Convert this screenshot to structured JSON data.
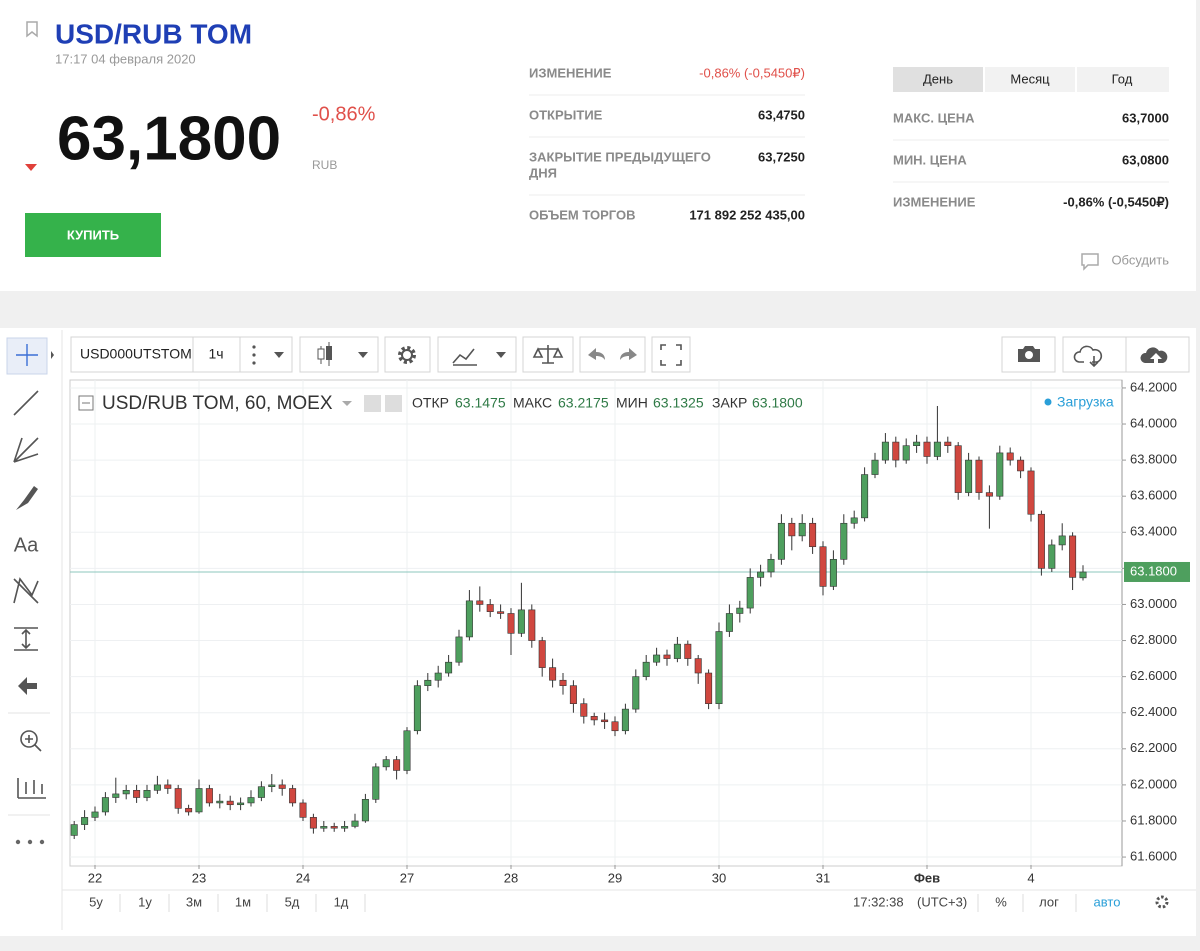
{
  "header": {
    "title": "USD/RUB TOM",
    "datetime": "17:17 04 февраля 2020",
    "price": "63,1800",
    "change": "-0,86%",
    "currency": "RUB",
    "buy_button": "КУПИТЬ"
  },
  "stats": [
    {
      "label": [
        "ИЗМЕНЕНИЕ"
      ],
      "value": "-0,86% (-0,5450₽)"
    },
    {
      "label": [
        "ОТКРЫТИЕ"
      ],
      "value": "63,4750"
    },
    {
      "label": [
        "ЗАКРЫТИЕ ПРЕДЫДУЩЕГО",
        "ДНЯ"
      ],
      "value": "63,7250"
    },
    {
      "label": [
        "ОБЪЕМ ТОРГОВ"
      ],
      "value": "171 892 252 435,00"
    }
  ],
  "period_tabs": [
    "День",
    "Месяц",
    "Год"
  ],
  "range_stats": [
    {
      "label": "МАКС. ЦЕНА",
      "value": "63,7000"
    },
    {
      "label": "МИН. ЦЕНА",
      "value": "63,0800"
    },
    {
      "label": "ИЗМЕНЕНИЕ",
      "value": "-0,86% (-0,5450₽)"
    }
  ],
  "discuss": "Обсудить",
  "toolbar": {
    "symbol": "USD000UTSTOM",
    "interval": "1ч"
  },
  "tools": {
    "text_tool": "Aa"
  },
  "chart_data": {
    "type": "candlestick",
    "title": "USD/RUB TOM, 60, MOEX",
    "legend": [
      {
        "name": "ОТКР",
        "value": "63.1475"
      },
      {
        "name": "МАКС",
        "value": "63.2175"
      },
      {
        "name": "МИН",
        "value": "63.1325"
      },
      {
        "name": "ЗАКР",
        "value": "63.1800"
      }
    ],
    "status": "Загрузка",
    "up_color": "#4e9f5e",
    "down_color": "#d0473f",
    "grid": true,
    "ylim": [
      61.556,
      64.244
    ],
    "yticks": [
      {
        "value": 61.6,
        "label": "61.6000"
      },
      {
        "value": 61.8,
        "label": "61.8000"
      },
      {
        "value": 62.0,
        "label": "62.0000"
      },
      {
        "value": 62.2,
        "label": "62.2000"
      },
      {
        "value": 62.4,
        "label": "62.4000"
      },
      {
        "value": 62.6,
        "label": "62.6000"
      },
      {
        "value": 62.8,
        "label": "62.8000"
      },
      {
        "value": 63.0,
        "label": "63.0000"
      },
      {
        "value": 63.2,
        "label": "63.2000"
      },
      {
        "value": 63.4,
        "label": "63.4000"
      },
      {
        "value": 63.6,
        "label": "63.6000"
      },
      {
        "value": 63.8,
        "label": "63.8000"
      },
      {
        "value": 64.0,
        "label": "64.0000"
      },
      {
        "value": 64.2,
        "label": "64.2000"
      }
    ],
    "price_line": {
      "value": 63.18,
      "label": "63.1800"
    },
    "categories": [
      null,
      null,
      "22",
      null,
      null,
      null,
      null,
      null,
      null,
      null,
      null,
      null,
      "23",
      null,
      null,
      null,
      null,
      null,
      null,
      null,
      null,
      null,
      "24",
      null,
      null,
      null,
      null,
      null,
      null,
      null,
      null,
      null,
      "27",
      null,
      null,
      null,
      null,
      null,
      null,
      null,
      null,
      null,
      "28",
      null,
      null,
      null,
      null,
      null,
      null,
      null,
      null,
      null,
      "29",
      null,
      null,
      null,
      null,
      null,
      null,
      null,
      null,
      null,
      "30",
      null,
      null,
      null,
      null,
      null,
      null,
      null,
      null,
      null,
      "31",
      null,
      null,
      null,
      null,
      null,
      null,
      null,
      null,
      null,
      "Фев",
      null,
      null,
      null,
      null,
      null,
      null,
      null,
      null,
      null,
      "4",
      null,
      null,
      null,
      null,
      null
    ],
    "ohlc": [
      [
        61.72,
        61.8,
        61.7,
        61.78
      ],
      [
        61.78,
        61.86,
        61.75,
        61.82
      ],
      [
        61.82,
        61.88,
        61.8,
        61.85
      ],
      [
        61.85,
        61.96,
        61.83,
        61.93
      ],
      [
        61.93,
        62.04,
        61.9,
        61.95
      ],
      [
        61.95,
        62.0,
        61.92,
        61.97
      ],
      [
        61.97,
        62.0,
        61.9,
        61.93
      ],
      [
        61.93,
        62.0,
        61.91,
        61.97
      ],
      [
        61.97,
        62.05,
        61.95,
        62.0
      ],
      [
        62.0,
        62.03,
        61.95,
        61.98
      ],
      [
        61.98,
        62.0,
        61.84,
        61.87
      ],
      [
        61.87,
        61.89,
        61.83,
        61.85
      ],
      [
        61.85,
        62.03,
        61.84,
        61.98
      ],
      [
        61.98,
        62.0,
        61.88,
        61.9
      ],
      [
        61.9,
        61.95,
        61.87,
        61.91
      ],
      [
        61.91,
        61.94,
        61.86,
        61.89
      ],
      [
        61.89,
        61.93,
        61.86,
        61.9
      ],
      [
        61.9,
        61.97,
        61.88,
        61.93
      ],
      [
        61.93,
        62.02,
        61.91,
        61.99
      ],
      [
        61.99,
        62.06,
        61.96,
        62.0
      ],
      [
        62.0,
        62.03,
        61.94,
        61.98
      ],
      [
        61.98,
        62.0,
        61.88,
        61.9
      ],
      [
        61.9,
        61.92,
        61.8,
        61.82
      ],
      [
        61.82,
        61.84,
        61.73,
        61.76
      ],
      [
        61.76,
        61.8,
        61.74,
        61.77
      ],
      [
        61.77,
        61.79,
        61.74,
        61.76
      ],
      [
        61.76,
        61.8,
        61.74,
        61.77
      ],
      [
        61.77,
        61.84,
        61.76,
        61.8
      ],
      [
        61.8,
        61.95,
        61.79,
        61.92
      ],
      [
        61.92,
        62.12,
        61.9,
        62.1
      ],
      [
        62.1,
        62.16,
        62.08,
        62.14
      ],
      [
        62.14,
        62.16,
        62.03,
        62.08
      ],
      [
        62.08,
        62.32,
        62.06,
        62.3
      ],
      [
        62.3,
        62.58,
        62.28,
        62.55
      ],
      [
        62.55,
        62.62,
        62.52,
        62.58
      ],
      [
        62.58,
        62.66,
        62.54,
        62.62
      ],
      [
        62.62,
        62.72,
        62.6,
        62.68
      ],
      [
        62.68,
        62.86,
        62.66,
        62.82
      ],
      [
        62.82,
        63.08,
        62.8,
        63.02
      ],
      [
        63.02,
        63.1,
        62.96,
        63.0
      ],
      [
        63.0,
        63.03,
        62.93,
        62.96
      ],
      [
        62.96,
        63.0,
        62.92,
        62.95
      ],
      [
        62.95,
        62.98,
        62.72,
        62.84
      ],
      [
        62.84,
        63.12,
        62.82,
        62.97
      ],
      [
        62.97,
        63.0,
        62.76,
        62.8
      ],
      [
        62.8,
        62.82,
        62.6,
        62.65
      ],
      [
        62.65,
        62.7,
        62.54,
        62.58
      ],
      [
        62.58,
        62.62,
        62.5,
        62.55
      ],
      [
        62.55,
        62.58,
        62.4,
        62.45
      ],
      [
        62.45,
        62.48,
        62.34,
        62.38
      ],
      [
        62.38,
        62.4,
        62.33,
        62.36
      ],
      [
        62.36,
        62.4,
        62.31,
        62.35
      ],
      [
        62.35,
        62.38,
        62.27,
        62.3
      ],
      [
        62.3,
        62.45,
        62.28,
        62.42
      ],
      [
        62.42,
        62.64,
        62.4,
        62.6
      ],
      [
        62.6,
        62.72,
        62.58,
        62.68
      ],
      [
        62.68,
        62.76,
        62.66,
        62.72
      ],
      [
        62.72,
        62.75,
        62.66,
        62.7
      ],
      [
        62.7,
        62.82,
        62.68,
        62.78
      ],
      [
        62.78,
        62.8,
        62.66,
        62.7
      ],
      [
        62.7,
        62.72,
        62.56,
        62.62
      ],
      [
        62.62,
        62.64,
        62.42,
        62.45
      ],
      [
        62.45,
        62.9,
        62.42,
        62.85
      ],
      [
        62.85,
        63.0,
        62.82,
        62.95
      ],
      [
        62.95,
        63.02,
        62.9,
        62.98
      ],
      [
        62.98,
        63.2,
        62.95,
        63.15
      ],
      [
        63.15,
        63.22,
        63.1,
        63.18
      ],
      [
        63.18,
        63.28,
        63.15,
        63.25
      ],
      [
        63.25,
        63.5,
        63.22,
        63.45
      ],
      [
        63.45,
        63.48,
        63.3,
        63.38
      ],
      [
        63.38,
        63.5,
        63.35,
        63.45
      ],
      [
        63.45,
        63.48,
        63.28,
        63.32
      ],
      [
        63.32,
        63.35,
        63.05,
        63.1
      ],
      [
        63.1,
        63.3,
        63.08,
        63.25
      ],
      [
        63.25,
        63.5,
        63.22,
        63.45
      ],
      [
        63.45,
        63.52,
        63.42,
        63.48
      ],
      [
        63.48,
        63.76,
        63.46,
        63.72
      ],
      [
        63.72,
        63.84,
        63.7,
        63.8
      ],
      [
        63.8,
        63.95,
        63.78,
        63.9
      ],
      [
        63.9,
        63.93,
        63.76,
        63.8
      ],
      [
        63.8,
        63.92,
        63.78,
        63.88
      ],
      [
        63.88,
        63.94,
        63.84,
        63.9
      ],
      [
        63.9,
        63.93,
        63.78,
        63.82
      ],
      [
        63.82,
        64.1,
        63.8,
        63.9
      ],
      [
        63.9,
        63.93,
        63.84,
        63.88
      ],
      [
        63.88,
        63.9,
        63.58,
        63.62
      ],
      [
        63.62,
        63.84,
        63.6,
        63.8
      ],
      [
        63.8,
        63.82,
        63.58,
        63.62
      ],
      [
        63.62,
        63.66,
        63.42,
        63.6
      ],
      [
        63.6,
        63.88,
        63.58,
        63.84
      ],
      [
        63.84,
        63.87,
        63.77,
        63.8
      ],
      [
        63.8,
        63.82,
        63.7,
        63.74
      ],
      [
        63.74,
        63.76,
        63.46,
        63.5
      ],
      [
        63.5,
        63.52,
        63.16,
        63.2
      ],
      [
        63.2,
        63.36,
        63.18,
        63.33
      ],
      [
        63.33,
        63.45,
        63.3,
        63.38
      ],
      [
        63.38,
        63.4,
        63.08,
        63.15
      ],
      [
        63.1475,
        63.2175,
        63.1325,
        63.18
      ]
    ]
  },
  "footer": {
    "ranges": [
      "5y",
      "1y",
      "3м",
      "1м",
      "5д",
      "1д"
    ],
    "time": "17:32:38",
    "timezone": "(UTC+3)",
    "percent": "%",
    "log": "лог",
    "auto": "авто"
  }
}
